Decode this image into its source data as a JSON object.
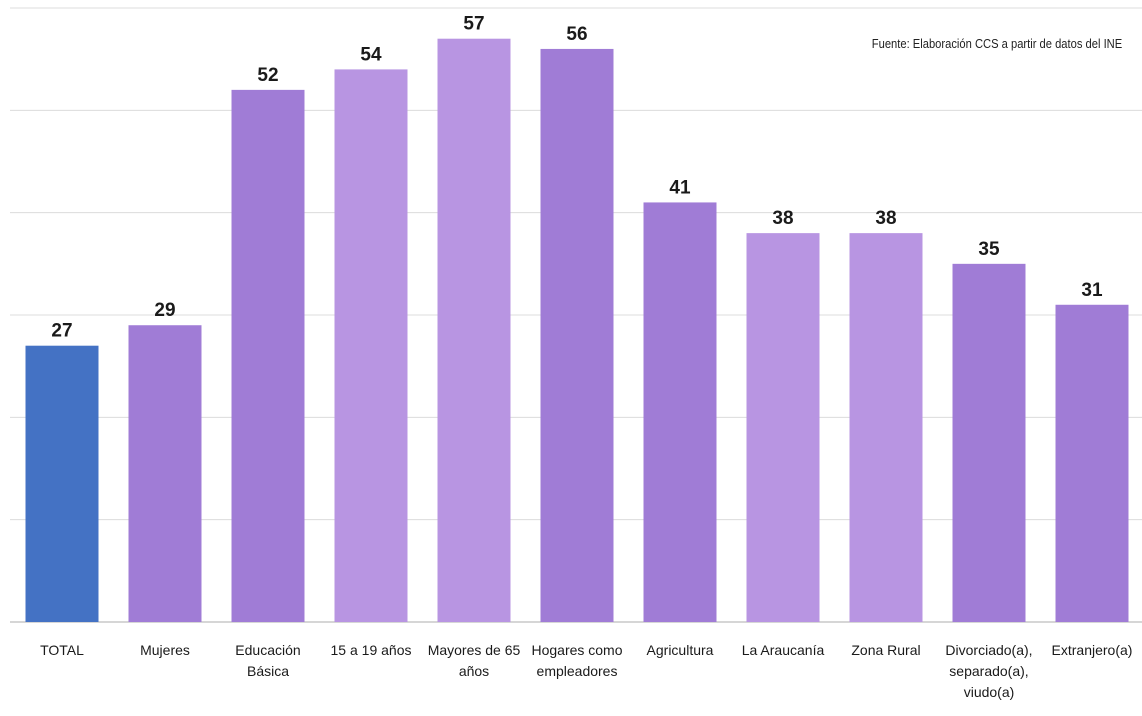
{
  "chart_data": {
    "type": "bar",
    "title": "",
    "xlabel": "",
    "ylabel": "",
    "source": "Fuente: Elaboración CCS a partir de datos del INE",
    "categories": [
      [
        "TOTAL"
      ],
      [
        "Mujeres"
      ],
      [
        "Educación",
        "Básica"
      ],
      [
        "15 a 19 años"
      ],
      [
        "Mayores de 65",
        "años"
      ],
      [
        "Hogares como",
        "empleadores"
      ],
      [
        "Agricultura"
      ],
      [
        "La Araucanía"
      ],
      [
        "Zona Rural"
      ],
      [
        "Divorciado(a),",
        "separado(a),",
        "viudo(a)"
      ],
      [
        "Extranjero(a)"
      ]
    ],
    "values": [
      27,
      29,
      52,
      54,
      57,
      56,
      41,
      38,
      38,
      35,
      31
    ],
    "bar_colors": [
      "#4472c4",
      "#a07cd6",
      "#a07cd6",
      "#b895e2",
      "#b895e2",
      "#a07cd6",
      "#a07cd6",
      "#b895e2",
      "#b895e2",
      "#a07cd6",
      "#a07cd6"
    ],
    "ylim": [
      0,
      60
    ],
    "gridlines": [
      0,
      10,
      20,
      30,
      40,
      50,
      60
    ],
    "grid": true,
    "legend": "none"
  }
}
